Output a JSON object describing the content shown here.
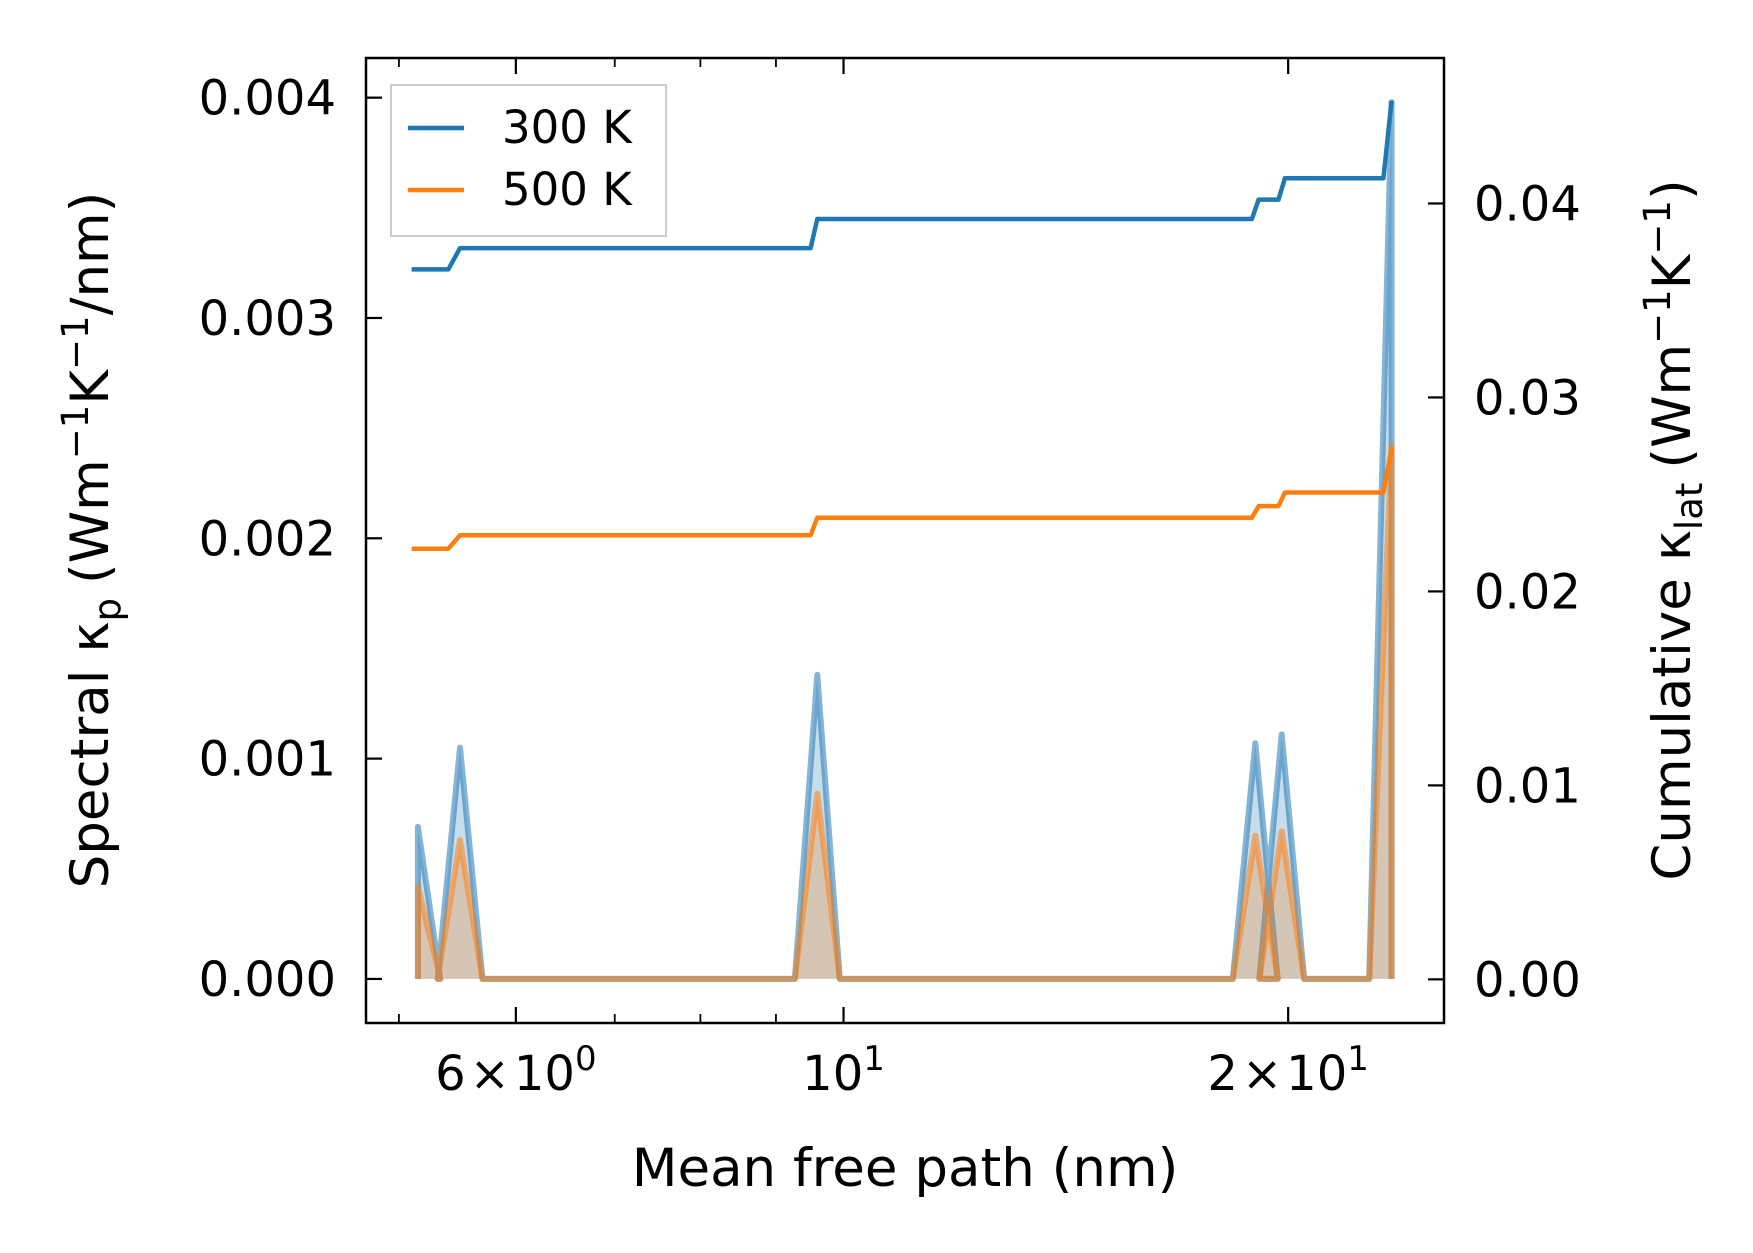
{
  "chart_data": {
    "type": "line",
    "xlabel": "Mean free path (nm)",
    "ylabel_left": {
      "text": "Spectral κ",
      "sub": "p",
      "unit_pre": "(Wm",
      "sup1": "−1",
      "k": "K",
      "sup2": "−1",
      "unit_post": "/nm)"
    },
    "ylabel_right": {
      "text": "Cumulative κ",
      "sub": "lat",
      "unit_pre": "(Wm",
      "sup1": "−1",
      "k": "K",
      "sup2": "−1",
      "unit_post": ")"
    },
    "xscale": "log",
    "xlim": [
      4.75,
      25.5
    ],
    "ylim_left": [
      -0.0002,
      0.00418
    ],
    "ylim_right": [
      -0.00225,
      0.0475
    ],
    "x_ticks": [
      {
        "value": 6,
        "base": "6",
        "times": "×",
        "mant": "10",
        "exp": "0"
      },
      {
        "value": 10,
        "base": "",
        "times": "",
        "mant": "10",
        "exp": "1"
      },
      {
        "value": 20,
        "base": "2",
        "times": "×",
        "mant": "10",
        "exp": "1"
      }
    ],
    "x_minor_ticks": [
      5,
      7,
      8,
      9
    ],
    "y_left_ticks": [
      "0.000",
      "0.001",
      "0.002",
      "0.003",
      "0.004"
    ],
    "y_left_tick_values": [
      0,
      0.001,
      0.002,
      0.003,
      0.004
    ],
    "y_right_ticks": [
      "0.00",
      "0.01",
      "0.02",
      "0.03",
      "0.04"
    ],
    "y_right_tick_values": [
      0,
      0.01,
      0.02,
      0.03,
      0.04
    ],
    "legend": {
      "position": "top-left",
      "entries": [
        {
          "label": "300 K",
          "color": "#1f77b4"
        },
        {
          "label": "500 K",
          "color": "#ff7f0e"
        }
      ]
    },
    "series_cumulative": [
      {
        "name": "300 K",
        "color": "#1f77b4",
        "x": [
          5.1,
          5.4,
          5.5,
          9.5,
          9.6,
          18.9,
          19.1,
          19.7,
          19.9,
          23.2,
          23.5
        ],
        "y": [
          0.0366,
          0.0366,
          0.0377,
          0.0377,
          0.0392,
          0.0392,
          0.0402,
          0.0402,
          0.0413,
          0.0413,
          0.0453
        ]
      },
      {
        "name": "500 K",
        "color": "#ff7f0e",
        "x": [
          5.1,
          5.4,
          5.5,
          9.5,
          9.6,
          18.9,
          19.1,
          19.7,
          19.9,
          23.2,
          23.5
        ],
        "y": [
          0.0222,
          0.0222,
          0.0229,
          0.0229,
          0.0238,
          0.0238,
          0.0244,
          0.0244,
          0.0251,
          0.0251,
          0.0274
        ]
      }
    ],
    "series_spectral": [
      {
        "name": "300 K",
        "color": "#1f77b4",
        "opacity": 0.55,
        "peaks": [
          {
            "x": 5.15,
            "y": 0.00069
          },
          {
            "x": 5.5,
            "y": 0.00105
          },
          {
            "x": 9.6,
            "y": 0.00138
          },
          {
            "x": 19.0,
            "y": 0.00107
          },
          {
            "x": 19.8,
            "y": 0.00111
          },
          {
            "x": 23.5,
            "y": 0.00398
          }
        ]
      },
      {
        "name": "500 K",
        "color": "#ff7f0e",
        "opacity": 0.55,
        "peaks": [
          {
            "x": 5.15,
            "y": 0.00042
          },
          {
            "x": 5.5,
            "y": 0.00063
          },
          {
            "x": 9.6,
            "y": 0.00084
          },
          {
            "x": 19.0,
            "y": 0.00065
          },
          {
            "x": 19.8,
            "y": 0.00067
          },
          {
            "x": 23.5,
            "y": 0.00242
          }
        ]
      }
    ]
  }
}
